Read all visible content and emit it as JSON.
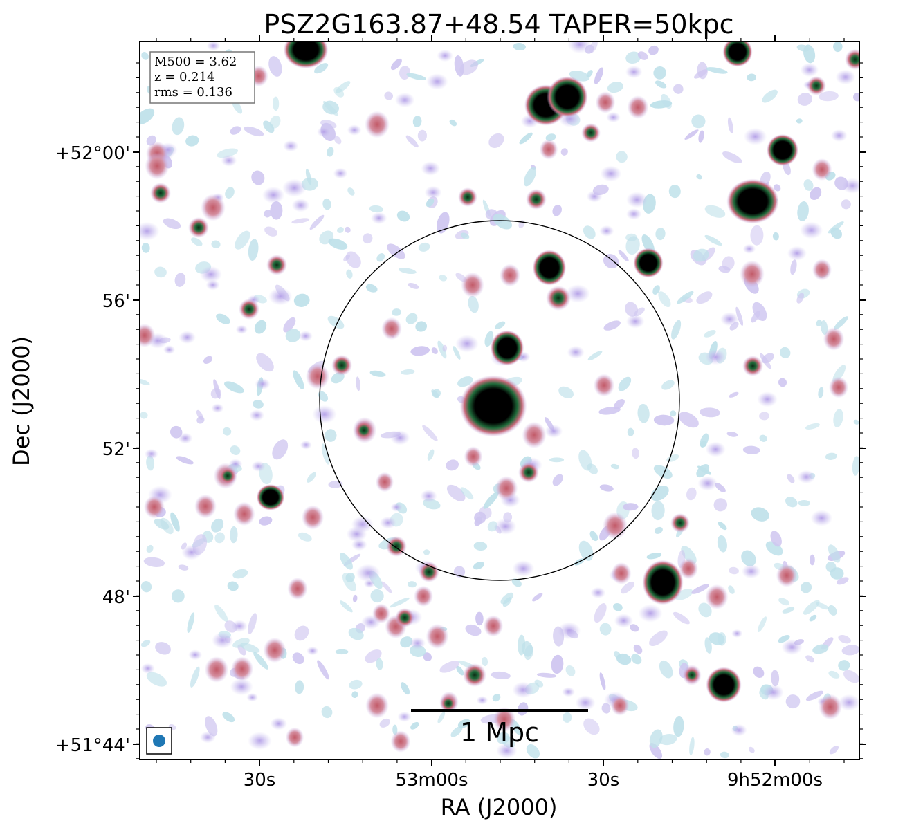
{
  "title": "PSZ2G163.87+48.54 TAPER=50kpc",
  "axes": {
    "xlabel": "RA (J2000)",
    "ylabel": "Dec (J2000)",
    "x_ticks": [
      "30s",
      "53m00s",
      "30s",
      "9h52m00s"
    ],
    "y_ticks": [
      "+52°00'",
      "56'",
      "52'",
      "48'",
      "+51°44'"
    ]
  },
  "info_box": {
    "m500": "M500 = 3.62",
    "z": "z = 0.214",
    "rms": "rms = 0.136"
  },
  "scale_bar": {
    "label": "1 Mpc"
  },
  "colors": {
    "compact_source": "#000000",
    "ring_green": "#1f6b3a",
    "moderate": "#c96a7a",
    "faint": "#b9a6e6",
    "noise": "#b3dde6",
    "beam": "#1f77b4"
  }
}
